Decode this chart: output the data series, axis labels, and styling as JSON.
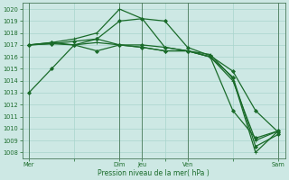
{
  "background_color": "#cde8e4",
  "grid_color": "#a8d5cc",
  "line_color": "#1a6b2a",
  "xlabel": "Pression niveau de la mer( hPa )",
  "ylim": [
    1007.5,
    1020.5
  ],
  "yticks": [
    1008,
    1009,
    1010,
    1011,
    1012,
    1013,
    1014,
    1015,
    1016,
    1017,
    1018,
    1019,
    1020
  ],
  "xtick_labels": [
    "Mer",
    "",
    "Dim",
    "Jeu",
    "",
    "Ven",
    "",
    "Sam"
  ],
  "xtick_positions": [
    0,
    2,
    4,
    5,
    6,
    7,
    9,
    11
  ],
  "vline_positions": [
    0,
    4,
    5,
    7,
    11
  ],
  "series": [
    {
      "x": [
        0,
        1,
        2,
        3,
        4,
        5,
        6,
        7,
        8,
        9,
        10,
        11
      ],
      "y": [
        1013.0,
        1015.0,
        1017.0,
        1017.5,
        1019.0,
        1019.2,
        1019.0,
        1016.8,
        1016.1,
        1014.8,
        1011.5,
        1009.7
      ],
      "marker": "D",
      "ms": 2.0,
      "lw": 0.9
    },
    {
      "x": [
        0,
        1,
        2,
        3,
        4,
        5,
        6,
        7,
        8,
        9,
        10,
        11
      ],
      "y": [
        1017.0,
        1017.2,
        1017.5,
        1018.0,
        1020.0,
        1019.2,
        1016.8,
        1016.5,
        1016.2,
        1014.2,
        1008.0,
        1009.8
      ],
      "marker": "+",
      "ms": 3.5,
      "lw": 0.9
    },
    {
      "x": [
        0,
        1,
        2,
        3,
        4,
        5,
        6,
        7,
        8,
        9,
        10,
        11
      ],
      "y": [
        1017.0,
        1017.1,
        1017.3,
        1017.5,
        1017.0,
        1017.0,
        1016.8,
        1016.5,
        1016.0,
        1014.3,
        1008.5,
        1009.5
      ],
      "marker": "D",
      "ms": 2.0,
      "lw": 0.9
    },
    {
      "x": [
        0,
        1,
        2,
        3,
        4,
        5,
        6,
        7,
        8,
        9,
        10,
        11
      ],
      "y": [
        1017.0,
        1017.2,
        1017.0,
        1016.5,
        1017.0,
        1016.8,
        1016.5,
        1016.5,
        1016.0,
        1011.5,
        1009.2,
        1009.8
      ],
      "marker": "D",
      "ms": 2.0,
      "lw": 0.9
    },
    {
      "x": [
        0,
        1,
        2,
        3,
        4,
        5,
        6,
        7,
        8,
        9,
        10,
        11
      ],
      "y": [
        1017.0,
        1017.1,
        1017.0,
        1017.2,
        1017.0,
        1016.8,
        1016.5,
        1016.5,
        1016.0,
        1014.0,
        1009.0,
        1009.8
      ],
      "marker": "+",
      "ms": 3.5,
      "lw": 0.9
    }
  ]
}
